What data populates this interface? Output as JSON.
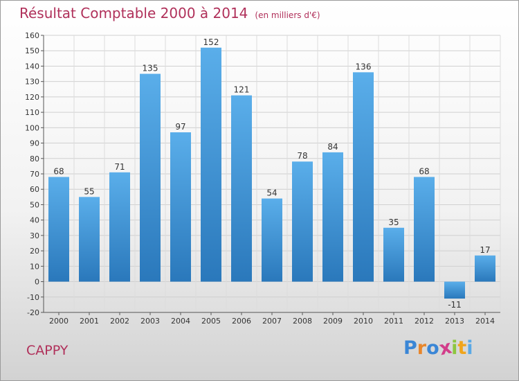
{
  "header": {
    "title": "Résultat Comptable 2000 à 2014",
    "subtitle": "(en milliers d'€)"
  },
  "footer": {
    "commune": "CAPPY",
    "logo": {
      "letters": [
        "P",
        "r",
        "o",
        "x",
        "i",
        "t",
        "i"
      ],
      "colors": [
        "#3a86d6",
        "#e8862a",
        "#3a86d6",
        "#d23d8a",
        "#8dc63f",
        "#f0a51c",
        "#5aa9e6"
      ]
    }
  },
  "chart_data": {
    "type": "bar",
    "title": "Résultat Comptable 2000 à 2014",
    "subtitle": "(en milliers d'€)",
    "categories": [
      "2000",
      "2001",
      "2002",
      "2003",
      "2004",
      "2005",
      "2006",
      "2007",
      "2008",
      "2009",
      "2010",
      "2011",
      "2012",
      "2013",
      "2014"
    ],
    "values": [
      68,
      55,
      71,
      135,
      97,
      152,
      121,
      54,
      78,
      84,
      136,
      35,
      68,
      -11,
      17
    ],
    "ylim": [
      -20,
      160
    ],
    "ytick_step": 10,
    "grid": true,
    "legend": "none",
    "bar_color_top": "#5aaeea",
    "bar_color_bottom": "#2a78bb"
  }
}
